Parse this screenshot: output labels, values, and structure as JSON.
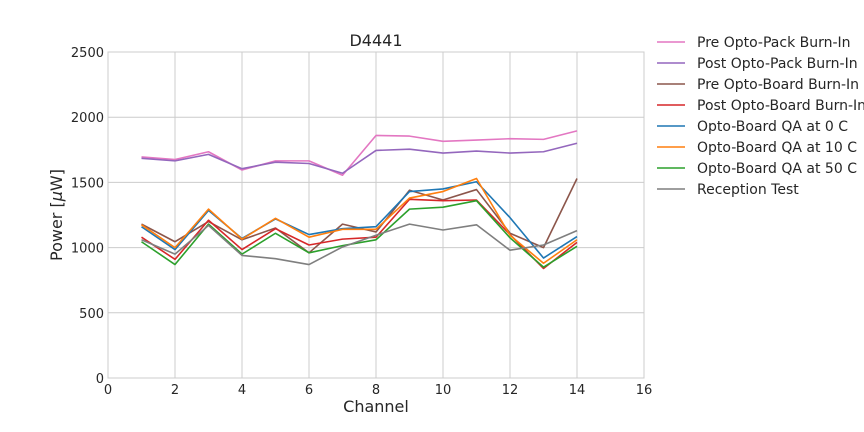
{
  "chart_data": {
    "type": "line",
    "title": "D4441",
    "xlabel": "Channel",
    "ylabel": "Power [",
    "ylabel_mu": "μ",
    "ylabel_unit": "W]",
    "xlim": [
      0,
      16
    ],
    "ylim": [
      0,
      2500
    ],
    "xticks": [
      0,
      2,
      4,
      6,
      8,
      10,
      12,
      14,
      16
    ],
    "yticks": [
      0,
      500,
      1000,
      1500,
      2000,
      2500
    ],
    "grid": true,
    "legend_position": "outside-right",
    "x": [
      1,
      2,
      3,
      4,
      5,
      6,
      7,
      8,
      9,
      10,
      11,
      12,
      13,
      14
    ],
    "series": [
      {
        "name": "Pre Opto-Pack Burn-In",
        "color": "#e377c2",
        "values": [
          1695,
          1675,
          1735,
          1595,
          1665,
          1665,
          1555,
          1860,
          1855,
          1815,
          1825,
          1835,
          1830,
          1895
        ]
      },
      {
        "name": "Post Opto-Pack Burn-In",
        "color": "#9467bd",
        "values": [
          1685,
          1665,
          1715,
          1605,
          1655,
          1645,
          1570,
          1745,
          1755,
          1725,
          1740,
          1725,
          1735,
          1800
        ]
      },
      {
        "name": "Pre Opto-Board Burn-In",
        "color": "#8c564b",
        "values": [
          1180,
          1045,
          1200,
          1060,
          1150,
          960,
          1180,
          1120,
          1440,
          1365,
          1445,
          1110,
          1000,
          1530
        ]
      },
      {
        "name": "Post Opto-Board Burn-In",
        "color": "#d62728",
        "values": [
          1080,
          910,
          1210,
          985,
          1145,
          1020,
          1065,
          1080,
          1370,
          1360,
          1365,
          1100,
          840,
          1040
        ]
      },
      {
        "name": "Opto-Board QA at 0 C",
        "color": "#1f77b4",
        "values": [
          1160,
          985,
          1285,
          1070,
          1220,
          1100,
          1145,
          1160,
          1430,
          1450,
          1505,
          1230,
          920,
          1085
        ]
      },
      {
        "name": "Opto-Board QA at 10 C",
        "color": "#ff7f0e",
        "values": [
          1175,
          1000,
          1295,
          1065,
          1225,
          1080,
          1140,
          1140,
          1380,
          1430,
          1530,
          1095,
          880,
          1060
        ]
      },
      {
        "name": "Opto-Board QA at 50 C",
        "color": "#2ca02c",
        "values": [
          1045,
          870,
          1180,
          950,
          1110,
          960,
          1015,
          1060,
          1295,
          1310,
          1360,
          1075,
          850,
          1010
        ]
      },
      {
        "name": "Reception Test",
        "color": "#7f7f7f",
        "values": [
          1060,
          950,
          1170,
          940,
          915,
          870,
          1005,
          1095,
          1180,
          1135,
          1175,
          980,
          1020,
          1130
        ]
      }
    ]
  }
}
